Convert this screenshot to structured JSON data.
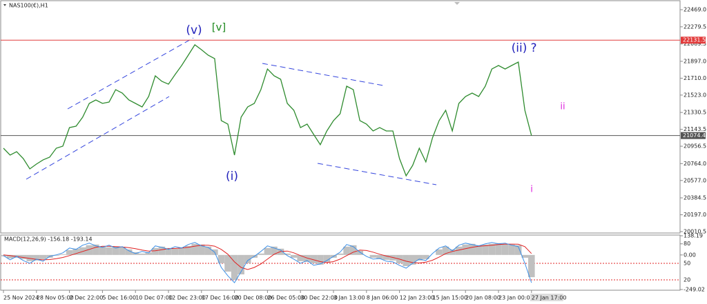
{
  "chart_data": [
    {
      "type": "line",
      "title": "NAS100(€),H1",
      "categories": [
        "25 Nov 2024",
        null,
        null,
        null,
        null,
        "28 Nov 05:00",
        null,
        null,
        null,
        null,
        "2 Dec 22:00",
        null,
        null,
        null,
        null,
        "5 Dec 16:00",
        null,
        null,
        null,
        null,
        "10 Dec 07:00",
        null,
        null,
        null,
        null,
        "12 Dec 23:00",
        null,
        null,
        null,
        null,
        "17 Dec 16:00",
        null,
        null,
        null,
        null,
        "20 Dec 08:00",
        null,
        null,
        null,
        null,
        "26 Dec 05:00",
        null,
        null,
        null,
        null,
        "30 Dec 22:00",
        null,
        null,
        null,
        null,
        "3 Jan 13:00",
        null,
        null,
        null,
        null,
        "8 Jan 06:00",
        null,
        null,
        null,
        null,
        "12 Jan 23:00",
        null,
        null,
        null,
        null,
        "15 Jan 15:00",
        null,
        null,
        null,
        null,
        "20 Jan 08:00",
        null,
        null,
        null,
        null,
        "23 Jan 00:00",
        null,
        null,
        null,
        null,
        "27 Jan 17:00"
      ],
      "series": [
        {
          "color": "#2e8b2e",
          "values": [
            20934,
            20858,
            20896,
            20820,
            20705,
            20759,
            20805,
            20835,
            20934,
            20957,
            21163,
            21179,
            21278,
            21431,
            21469,
            21431,
            21446,
            21583,
            21545,
            21469,
            21431,
            21392,
            21507,
            21736,
            21675,
            21644,
            21751,
            21851,
            21965,
            22080,
            22026,
            21965,
            21927,
            21240,
            21202,
            20858,
            21278,
            21392,
            21431,
            21583,
            21812,
            21736,
            21698,
            21431,
            21354,
            21163,
            21202,
            21087,
            20973,
            21125,
            21240,
            21316,
            21622,
            21583,
            21240,
            21202,
            21125,
            21163,
            21125,
            21125,
            20820,
            20629,
            20744,
            20934,
            20782,
            21049,
            21240,
            21354,
            21125,
            21431,
            21507,
            21545,
            21507,
            21622,
            21812,
            21851,
            21812,
            21851,
            21889,
            21354,
            21074.4
          ]
        }
      ],
      "ylim": [
        19995,
        22561
      ],
      "yticks": [
        {
          "value": 22469,
          "label": "22469.0"
        },
        22279.5,
        22089.5,
        {
          "value": 21897,
          "label": "21897.0"
        },
        {
          "value": 21710,
          "label": "21710.0"
        },
        {
          "value": 21523,
          "label": "21523.0"
        },
        21330.5,
        21143.5,
        20956.5,
        {
          "value": 20764,
          "label": "20764.0"
        },
        {
          "value": 20577,
          "label": "20577.0"
        },
        20384.5,
        {
          "value": 20197,
          "label": "20197.0"
        },
        20010.5
      ],
      "hlines": [
        {
          "value": 22131.5,
          "color": "#e23b3b"
        },
        {
          "value": 21074.4,
          "color": "#555555"
        }
      ],
      "annotations": [
        "(v)",
        "[v]",
        "(i)",
        "(ii)",
        "?",
        "ii",
        "i"
      ]
    },
    {
      "type": "combo",
      "title": "MACD(12,26,9) -156.18 -193.14",
      "series": [
        {
          "kind": "bar",
          "color": "#c0c0c0",
          "values": [
            -10,
            -25,
            -20,
            -30,
            -45,
            -40,
            -30,
            -20,
            -5,
            5,
            35,
            45,
            55,
            70,
            75,
            60,
            55,
            60,
            55,
            40,
            20,
            10,
            20,
            50,
            60,
            50,
            45,
            55,
            65,
            80,
            75,
            60,
            40,
            -60,
            -120,
            -180,
            -140,
            -60,
            -20,
            10,
            50,
            60,
            45,
            10,
            -20,
            -45,
            -50,
            -60,
            -70,
            -50,
            -20,
            10,
            60,
            70,
            30,
            0,
            -20,
            -30,
            -35,
            -40,
            -60,
            -80,
            -70,
            -40,
            -30,
            0,
            40,
            60,
            40,
            60,
            75,
            80,
            70,
            75,
            80,
            85,
            80,
            75,
            70,
            -20,
            -160
          ]
        },
        {
          "kind": "line",
          "color": "#e02020",
          "values": [
            0,
            -5,
            -12,
            -18,
            -25,
            -32,
            -35,
            -33,
            -27,
            -18,
            -5,
            10,
            25,
            40,
            55,
            62,
            62,
            60,
            58,
            53,
            45,
            35,
            28,
            30,
            38,
            45,
            47,
            50,
            55,
            63,
            70,
            70,
            63,
            40,
            5,
            -50,
            -90,
            -105,
            -90,
            -65,
            -30,
            5,
            25,
            28,
            15,
            -5,
            -22,
            -35,
            -48,
            -55,
            -48,
            -30,
            -5,
            20,
            35,
            32,
            20,
            5,
            -8,
            -18,
            -30,
            -45,
            -55,
            -58,
            -52,
            -38,
            -15,
            10,
            25,
            35,
            45,
            55,
            62,
            66,
            70,
            75,
            78,
            78,
            77,
            60,
            10
          ]
        },
        {
          "kind": "line",
          "color": "#3a8ee6",
          "values": [
            -5,
            -35,
            -10,
            -40,
            -60,
            -30,
            -45,
            -10,
            0,
            15,
            50,
            40,
            70,
            85,
            65,
            55,
            70,
            50,
            60,
            30,
            10,
            25,
            15,
            65,
            55,
            40,
            60,
            50,
            75,
            90,
            65,
            55,
            20,
            -90,
            -150,
            -200,
            -120,
            -40,
            -10,
            25,
            65,
            50,
            35,
            -5,
            -30,
            -60,
            -40,
            -75,
            -65,
            -40,
            -10,
            20,
            75,
            60,
            20,
            -10,
            -30,
            -25,
            -45,
            -50,
            -75,
            -95,
            -60,
            -30,
            -40,
            10,
            50,
            65,
            30,
            70,
            85,
            75,
            65,
            80,
            90,
            80,
            85,
            70,
            60,
            -60,
            -200
          ]
        }
      ],
      "ylim": [
        -249.02,
        138.19
      ],
      "yticks": [
        138.19,
        80,
        {
          "value": 0,
          "label": "0.00"
        },
        -249.02
      ],
      "annotations": [
        "50",
        "20"
      ]
    }
  ]
}
